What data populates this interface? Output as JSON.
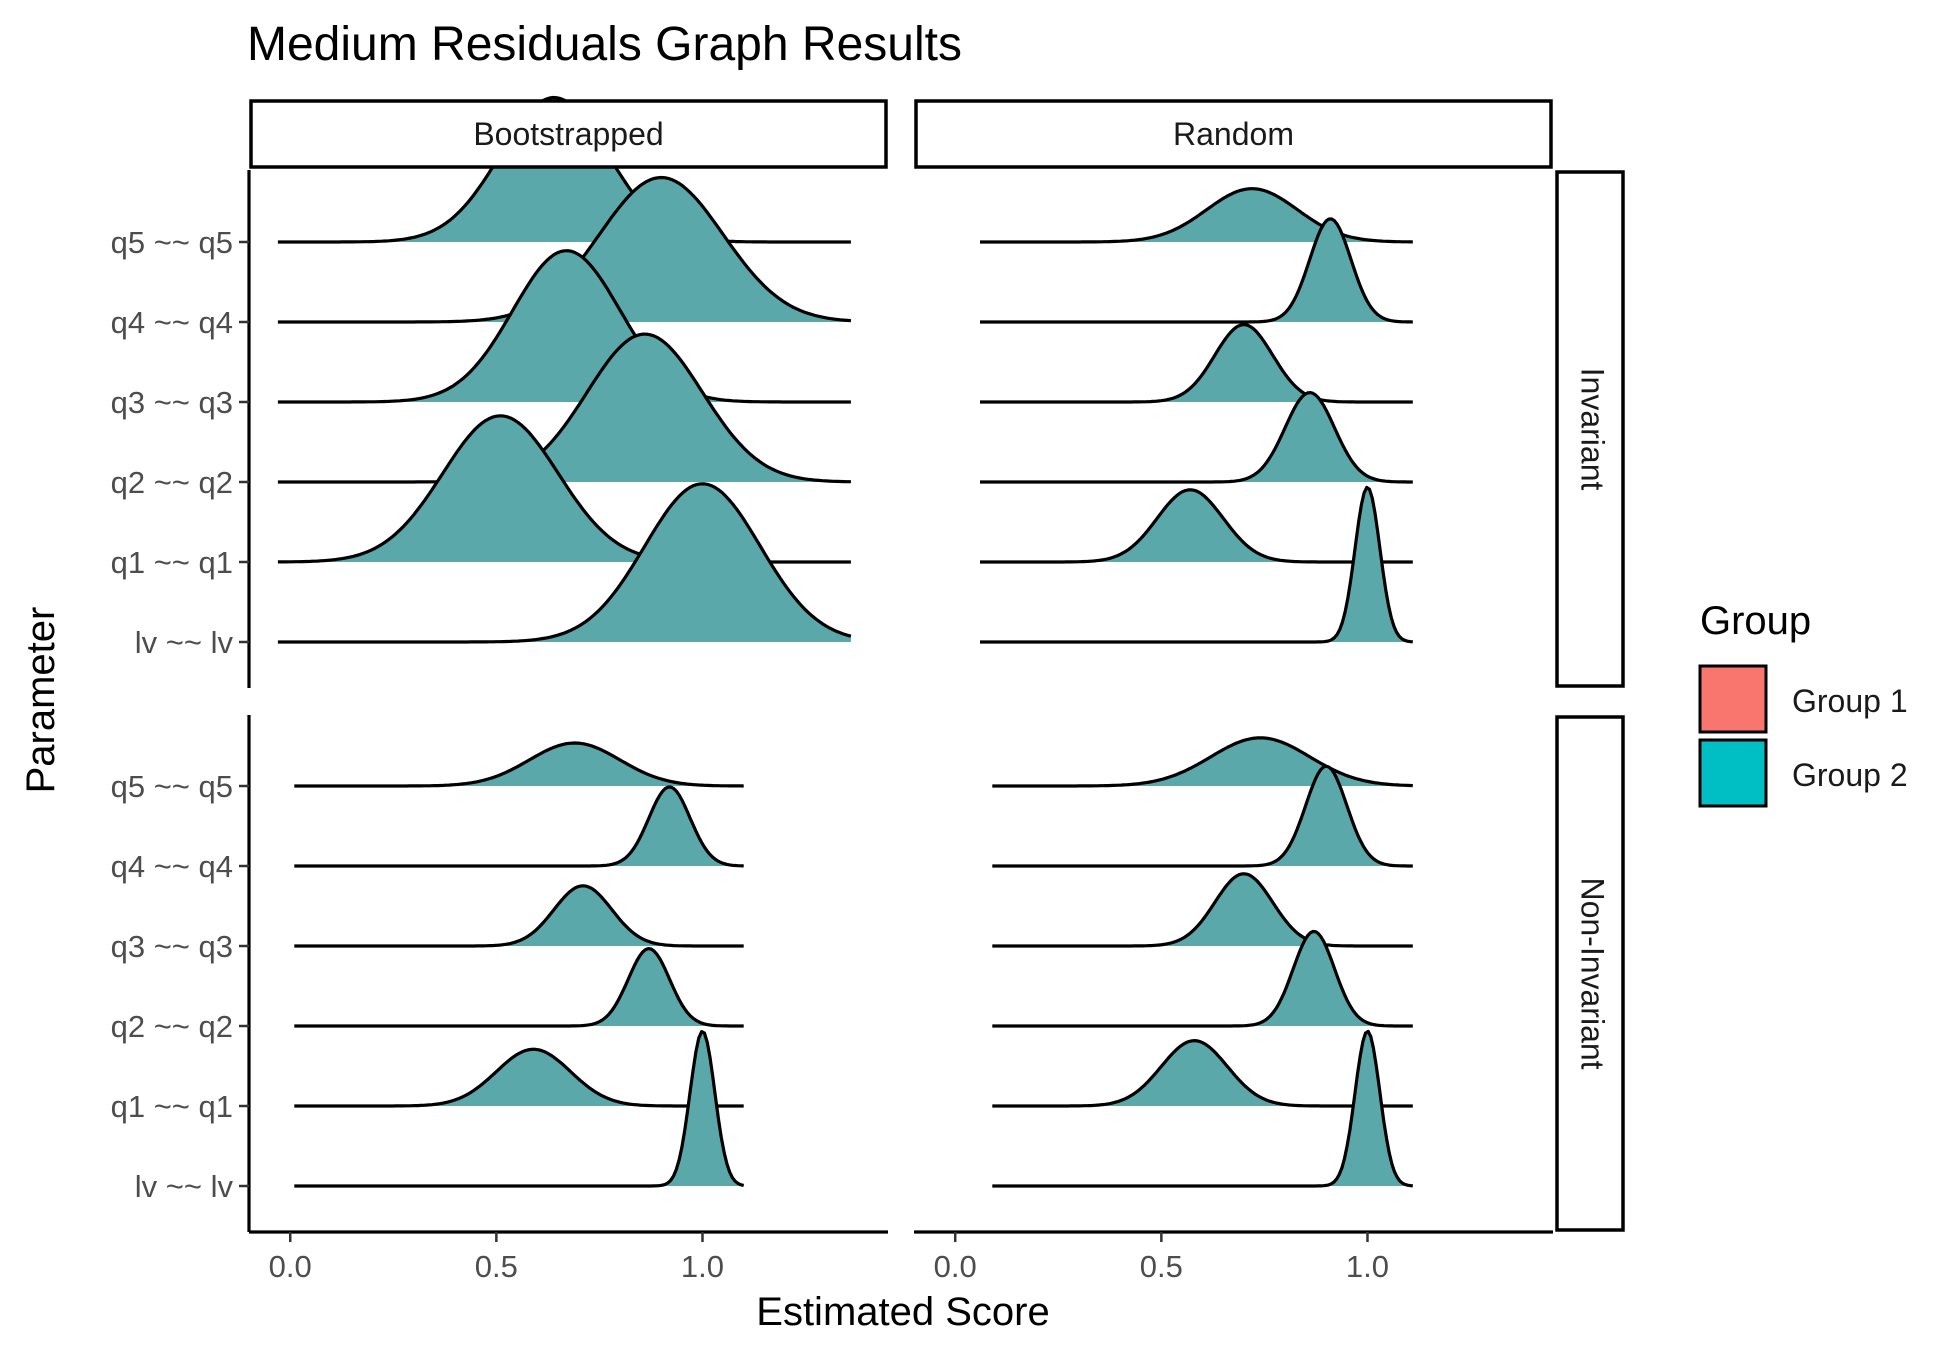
{
  "chart_data": {
    "type": "area",
    "title": "Medium Residuals Graph Results",
    "xlabel": "Estimated Score",
    "ylabel": "Parameter",
    "columns": [
      "Bootstrapped",
      "Random"
    ],
    "rows": [
      "Invariant",
      "Non-Invariant"
    ],
    "parameters": [
      "lv ~~ lv",
      "q1 ~~ q1",
      "q2 ~~ q2",
      "q3 ~~ q3",
      "q4 ~~ q4",
      "q5 ~~ q5"
    ],
    "x_ticks": [
      0.0,
      0.5,
      1.0
    ],
    "x_tick_labels": [
      "0.0",
      "0.5",
      "1.0"
    ],
    "xlim": [
      -0.1,
      1.45
    ],
    "legend": {
      "title": "Group",
      "position": "right",
      "entries": [
        {
          "label": "Group 1",
          "color": "#F8766D"
        },
        {
          "label": "Group 2",
          "color": "#00BFC4"
        }
      ]
    },
    "fill_color": "#5BA8AA",
    "grid": false,
    "panels": [
      {
        "column": "Bootstrapped",
        "row": "Invariant",
        "xrange": [
          -0.03,
          1.36
        ],
        "ridges": [
          {
            "parameter": "lv ~~ lv",
            "mean": 1.0,
            "sd": 0.14,
            "peak": 0.92
          },
          {
            "parameter": "q1 ~~ q1",
            "mean": 0.51,
            "sd": 0.14,
            "peak": 0.85
          },
          {
            "parameter": "q2 ~~ q2",
            "mean": 0.86,
            "sd": 0.14,
            "peak": 0.86
          },
          {
            "parameter": "q3 ~~ q3",
            "mean": 0.67,
            "sd": 0.13,
            "peak": 0.88
          },
          {
            "parameter": "q4 ~~ q4",
            "mean": 0.9,
            "sd": 0.15,
            "peak": 0.84
          },
          {
            "parameter": "q5 ~~ q5",
            "mean": 0.64,
            "sd": 0.13,
            "peak": 0.84
          }
        ]
      },
      {
        "column": "Random",
        "row": "Invariant",
        "xrange": [
          0.06,
          1.11
        ],
        "ridges": [
          {
            "parameter": "lv ~~ lv",
            "mean": 1.0,
            "sd": 0.03,
            "peak": 0.9
          },
          {
            "parameter": "q1 ~~ q1",
            "mean": 0.57,
            "sd": 0.08,
            "peak": 0.42
          },
          {
            "parameter": "q2 ~~ q2",
            "mean": 0.86,
            "sd": 0.06,
            "peak": 0.52
          },
          {
            "parameter": "q3 ~~ q3",
            "mean": 0.7,
            "sd": 0.07,
            "peak": 0.45
          },
          {
            "parameter": "q4 ~~ q4",
            "mean": 0.91,
            "sd": 0.05,
            "peak": 0.6
          },
          {
            "parameter": "q5 ~~ q5",
            "mean": 0.72,
            "sd": 0.11,
            "peak": 0.31
          }
        ]
      },
      {
        "column": "Bootstrapped",
        "row": "Non-Invariant",
        "xrange": [
          0.01,
          1.1
        ],
        "ridges": [
          {
            "parameter": "lv ~~ lv",
            "mean": 1.0,
            "sd": 0.03,
            "peak": 0.9
          },
          {
            "parameter": "q1 ~~ q1",
            "mean": 0.59,
            "sd": 0.09,
            "peak": 0.33
          },
          {
            "parameter": "q2 ~~ q2",
            "mean": 0.87,
            "sd": 0.05,
            "peak": 0.45
          },
          {
            "parameter": "q3 ~~ q3",
            "mean": 0.71,
            "sd": 0.07,
            "peak": 0.35
          },
          {
            "parameter": "q4 ~~ q4",
            "mean": 0.92,
            "sd": 0.05,
            "peak": 0.46
          },
          {
            "parameter": "q5 ~~ q5",
            "mean": 0.69,
            "sd": 0.11,
            "peak": 0.25
          }
        ]
      },
      {
        "column": "Random",
        "row": "Non-Invariant",
        "xrange": [
          0.09,
          1.11
        ],
        "ridges": [
          {
            "parameter": "lv ~~ lv",
            "mean": 1.0,
            "sd": 0.03,
            "peak": 0.9
          },
          {
            "parameter": "q1 ~~ q1",
            "mean": 0.58,
            "sd": 0.08,
            "peak": 0.38
          },
          {
            "parameter": "q2 ~~ q2",
            "mean": 0.87,
            "sd": 0.05,
            "peak": 0.55
          },
          {
            "parameter": "q3 ~~ q3",
            "mean": 0.7,
            "sd": 0.07,
            "peak": 0.42
          },
          {
            "parameter": "q4 ~~ q4",
            "mean": 0.9,
            "sd": 0.05,
            "peak": 0.58
          },
          {
            "parameter": "q5 ~~ q5",
            "mean": 0.74,
            "sd": 0.12,
            "peak": 0.28
          }
        ]
      }
    ]
  }
}
